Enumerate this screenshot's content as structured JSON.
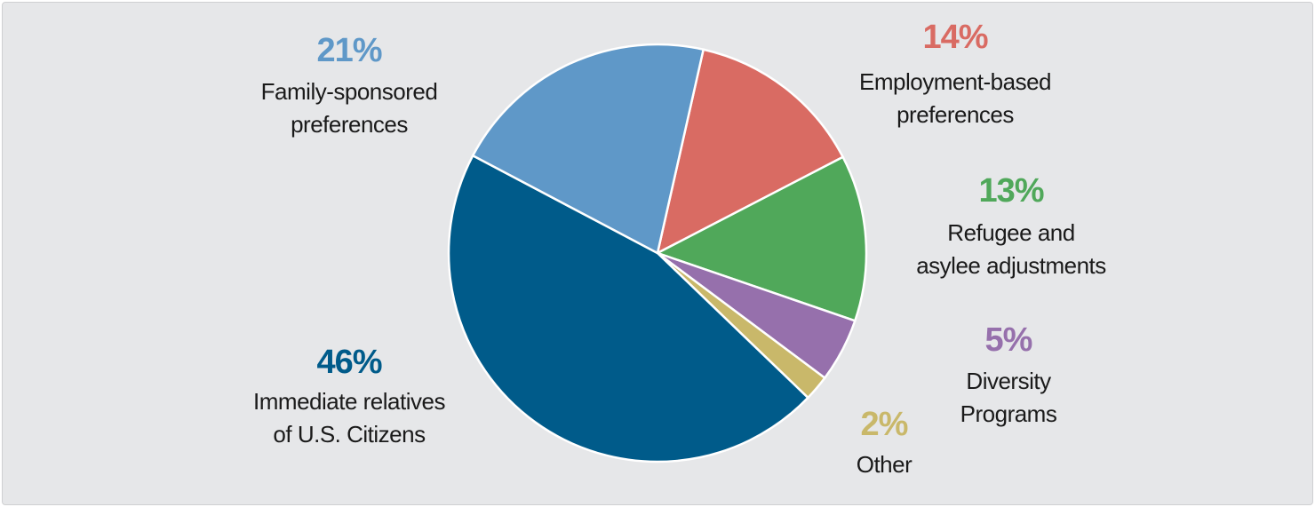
{
  "chart_data": {
    "type": "pie",
    "categories": [
      "Employment-based\npreferences",
      "Refugee and\nasylee adjustments",
      "Diversity\nPrograms",
      "Other",
      "Immediate relatives\nof U.S. Citizens",
      "Family-sponsored\npreferences"
    ],
    "values": [
      14,
      13,
      5,
      2,
      46,
      21
    ],
    "value_labels": [
      "14%",
      "13%",
      "5%",
      "2%",
      "46%",
      "21%"
    ],
    "colors": [
      "#d96b63",
      "#50a85a",
      "#9670ac",
      "#c9b86a",
      "#005b8a",
      "#5f98c8"
    ]
  }
}
